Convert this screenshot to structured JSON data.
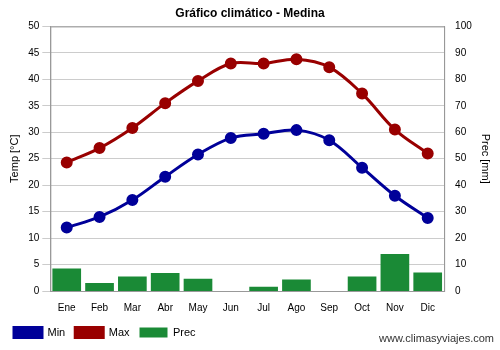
{
  "chart_data": {
    "type": "bar",
    "title": "Gráfico climático - Medina",
    "y_label": "Temp [°C]",
    "y2_label": "Prec [mm]",
    "annotations": [
      "www.climasyviajes.com"
    ],
    "categories": [
      "Ene",
      "Feb",
      "Mar",
      "Abr",
      "May",
      "Jun",
      "Jul",
      "Ago",
      "Sep",
      "Oct",
      "Nov",
      "Dic"
    ],
    "series": [
      {
        "name": "Prec",
        "type": "bar",
        "axis": "y2",
        "color": "#1a8a36",
        "values": [
          8.5,
          3,
          5.5,
          6.8,
          4.6,
          0,
          1.6,
          4.3,
          0,
          5.5,
          14,
          7
        ]
      },
      {
        "name": "Min",
        "type": "line",
        "color": "#000099",
        "marker": "circle",
        "values": [
          12,
          14,
          17.2,
          21.6,
          25.8,
          28.9,
          29.7,
          30.4,
          28.5,
          23.3,
          18,
          13.8
        ]
      },
      {
        "name": "Max",
        "type": "line",
        "color": "#990000",
        "marker": "circle",
        "values": [
          24.3,
          27,
          30.8,
          35.5,
          39.7,
          43,
          43,
          43.8,
          42.3,
          37.3,
          30.5,
          26
        ]
      }
    ],
    "ylim": [
      0,
      50
    ],
    "yticks": [
      0,
      5,
      10,
      15,
      20,
      25,
      30,
      35,
      40,
      45,
      50
    ],
    "y2lim": [
      0,
      100
    ],
    "y2ticks": [
      0,
      10,
      20,
      30,
      40,
      50,
      60,
      70,
      80,
      90,
      100
    ],
    "grid": true,
    "legend": "bottom"
  }
}
